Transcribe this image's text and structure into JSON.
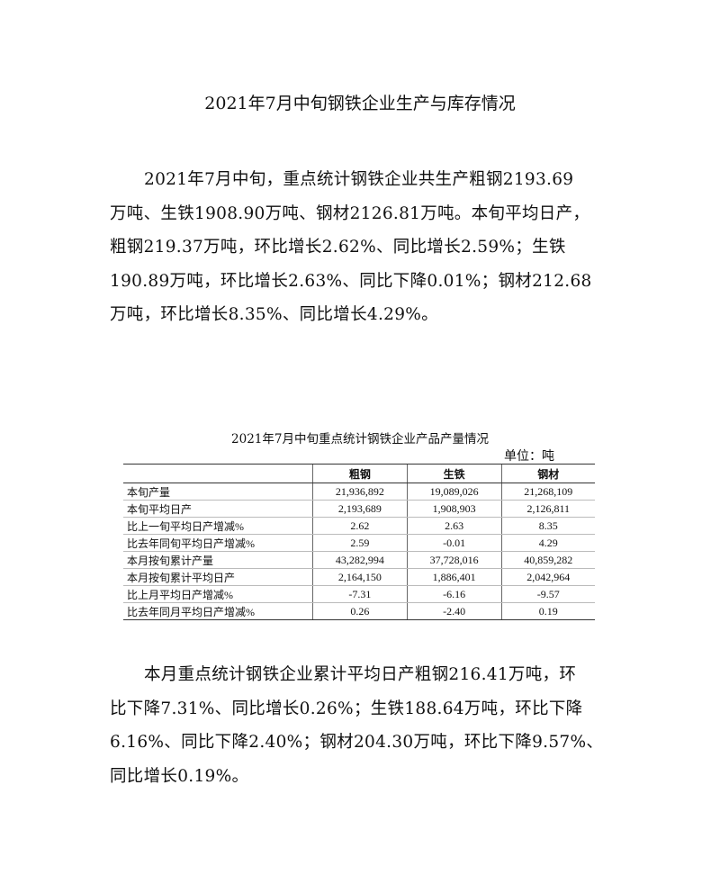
{
  "title": "2021年7月中旬钢铁企业生产与库存情况",
  "paragraph1": [
    "2021年7月中旬，重点统计钢铁企业共生产粗钢2193.69",
    "万吨、生铁1908.90万吨、钢材2126.81万吨。本旬平均日产，",
    "粗钢219.37万吨，环比增长2.62%、同比增长2.59%；生铁",
    "190.89万吨，环比增长2.63%、同比下降0.01%；钢材212.68",
    "万吨，环比增长8.35%、同比增长4.29%。"
  ],
  "table": {
    "caption": "2021年7月中旬重点统计钢铁企业产品产量情况",
    "unit": "单位：吨",
    "headers": [
      "",
      "粗钢",
      "生铁",
      "钢材"
    ],
    "rows": [
      [
        "本旬产量",
        "21,936,892",
        "19,089,026",
        "21,268,109"
      ],
      [
        "本旬平均日产",
        "2,193,689",
        "1,908,903",
        "2,126,811"
      ],
      [
        "比上一旬平均日产增减%",
        "2.62",
        "2.63",
        "8.35"
      ],
      [
        "比去年同旬平均日产增减%",
        "2.59",
        "-0.01",
        "4.29"
      ],
      [
        "本月按旬累计产量",
        "43,282,994",
        "37,728,016",
        "40,859,282"
      ],
      [
        "本月按旬累计平均日产",
        "2,164,150",
        "1,886,401",
        "2,042,964"
      ],
      [
        "比上月平均日产增减%",
        "-7.31",
        "-6.16",
        "-9.57"
      ],
      [
        "比去年同月平均日产增减%",
        "0.26",
        "-2.40",
        "0.19"
      ]
    ]
  },
  "paragraph2": [
    "本月重点统计钢铁企业累计平均日产粗钢216.41万吨，环",
    "比下降7.31%、同比增长0.26%；生铁188.64万吨，环比下降",
    "6.16%、同比下降2.40%；钢材204.30万吨，环比下降9.57%、",
    "同比增长0.19%。"
  ]
}
